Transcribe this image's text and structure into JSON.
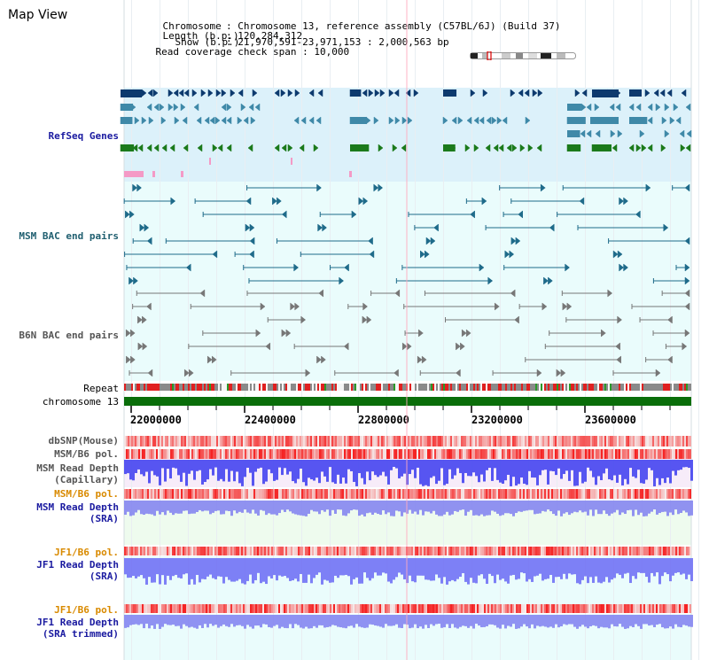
{
  "header": {
    "title": "Map View",
    "chromosome_key": "Chromosome",
    "chromosome_value": "Chromosome 13, reference assembly (C57BL/6J) (Build 37)",
    "length_key": "Length (b.p.)",
    "length_value": "120,284,312",
    "show_key": "Show (b.p.)",
    "show_value": "21,970,591-23,971,153 : 2,000,563 bp",
    "coverage_key": "Read coverage check span",
    "coverage_value": "10,000"
  },
  "tracks": {
    "refseq": "RefSeq Genes",
    "msm_bac": "MSM BAC end pairs",
    "b6n_bac": "B6N BAC end pairs",
    "repeat": "Repeat",
    "chromosome": "chromosome 13",
    "dbsnp": "dbSNP(Mouse)",
    "msm_b6_pol_1": "MSM/B6 pol.",
    "msm_read_depth_cap_1": "MSM Read Depth",
    "msm_read_depth_cap_2": "(Capillary)",
    "msm_b6_pol_2": "MSM/B6 pol.",
    "msm_read_depth_sra_1": "MSM Read Depth",
    "msm_read_depth_sra_2": "(SRA)",
    "jf1_b6_pol_1": "JF1/B6 pol.",
    "jf1_read_depth_sra_1": "JF1 Read Depth",
    "jf1_read_depth_sra_2": "(SRA)",
    "jf1_b6_pol_2": "JF1/B6 pol.",
    "jf1_read_depth_trim_1": "JF1 Read Depth",
    "jf1_read_depth_trim_2": "(SRA trimmed)"
  },
  "axis": {
    "ticks": [
      "22000000",
      "22400000",
      "22800000",
      "23200000",
      "23600000"
    ]
  },
  "colors": {
    "refseq_bg": "#dcf1fa",
    "bac_bg": "#eafcfc",
    "gene_navy": "#0d3a6e",
    "gene_teal": "#3f89a8",
    "gene_green": "#1b7a1b",
    "msm_bac_line": "#1f6b8a",
    "b6n_bac_line": "#777777",
    "chrom_green": "#0a6e0a",
    "depth_blue": "#3b3bf0",
    "label_blue": "#1a1aa0",
    "label_orange": "#d98a00",
    "label_teal": "#205f70"
  }
}
